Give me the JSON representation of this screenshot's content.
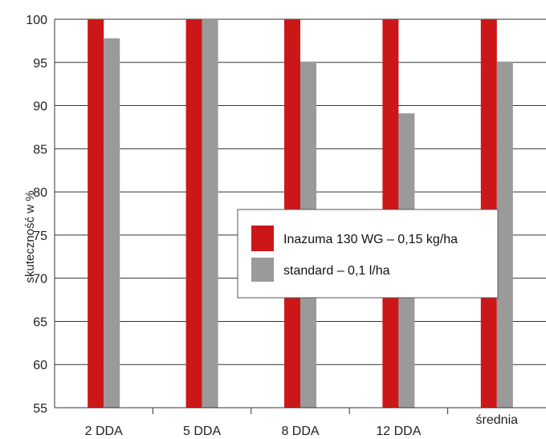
{
  "chart_data": {
    "type": "bar",
    "title": "",
    "xlabel": "",
    "ylabel": "skuteczność w %",
    "ylim": [
      55,
      100
    ],
    "yticks": [
      55,
      60,
      65,
      70,
      75,
      80,
      85,
      90,
      95,
      100
    ],
    "categories": [
      "2 DDA",
      "5 DDA",
      "8 DDA",
      "12 DDA",
      "średnia"
    ],
    "series": [
      {
        "name": "Inazuma 130 WG – 0,15 kg/ha",
        "values": [
          100,
          100,
          100,
          100,
          100
        ],
        "color": "#cc1719"
      },
      {
        "name": "standard – 0,1 l/ha",
        "values": [
          97.8,
          100,
          95.1,
          89.1,
          95.1
        ],
        "color": "#9a9a9a"
      }
    ],
    "grid": true,
    "legend": "center-right"
  }
}
